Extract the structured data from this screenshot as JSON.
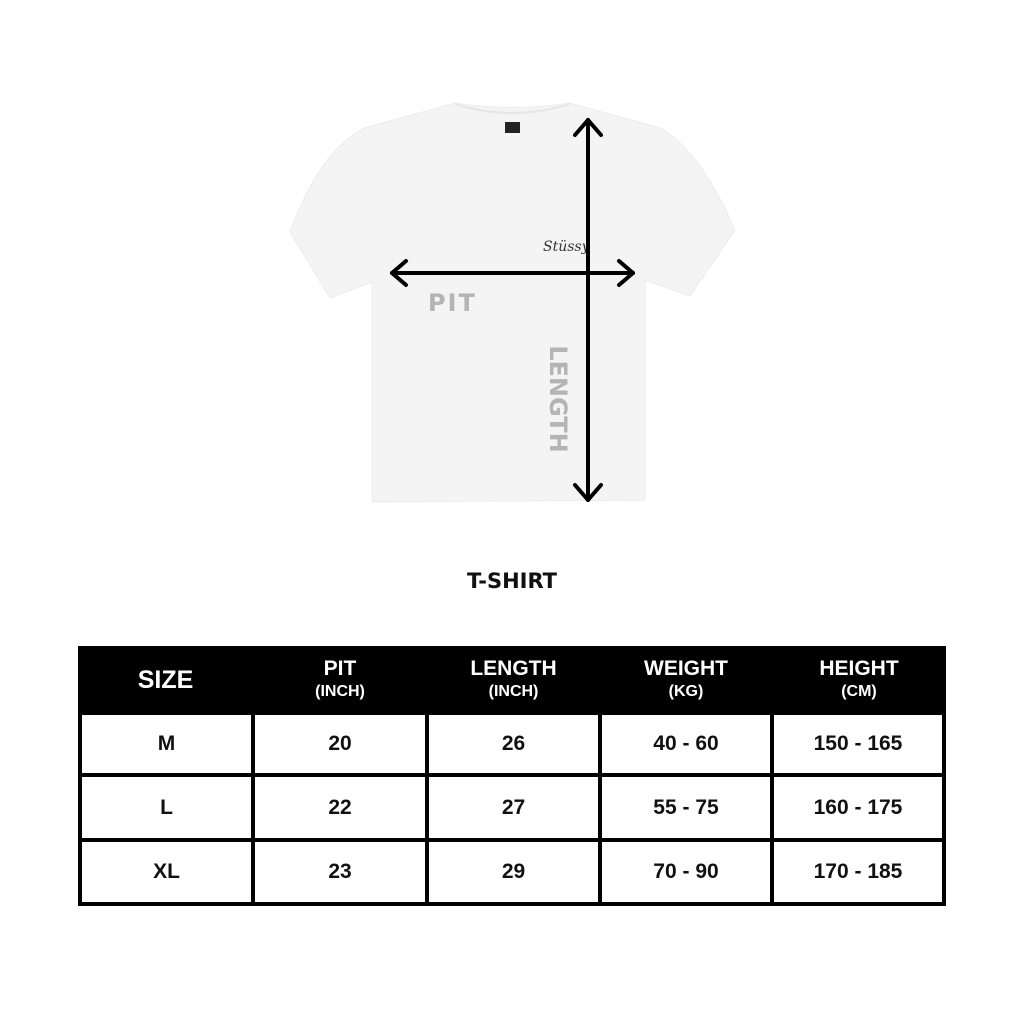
{
  "diagram": {
    "pit_label": "PIT",
    "length_label": "LENGTH",
    "shirt_color": "#f4f4f4",
    "arrow_color": "#000000",
    "label_color": "#b4b4b4"
  },
  "title": "T-SHIRT",
  "table": {
    "headers": [
      {
        "main": "SIZE",
        "sub": ""
      },
      {
        "main": "PIT",
        "sub": "(INCH)"
      },
      {
        "main": "LENGTH",
        "sub": "(INCH)"
      },
      {
        "main": "WEIGHT",
        "sub": "(KG)"
      },
      {
        "main": "HEIGHT",
        "sub": "(CM)"
      }
    ],
    "rows": [
      [
        "M",
        "20",
        "26",
        "40 - 60",
        "150 - 165"
      ],
      [
        "L",
        "22",
        "27",
        "55 - 75",
        "160 - 175"
      ],
      [
        "XL",
        "23",
        "29",
        "70 - 90",
        "170 - 185"
      ]
    ]
  }
}
